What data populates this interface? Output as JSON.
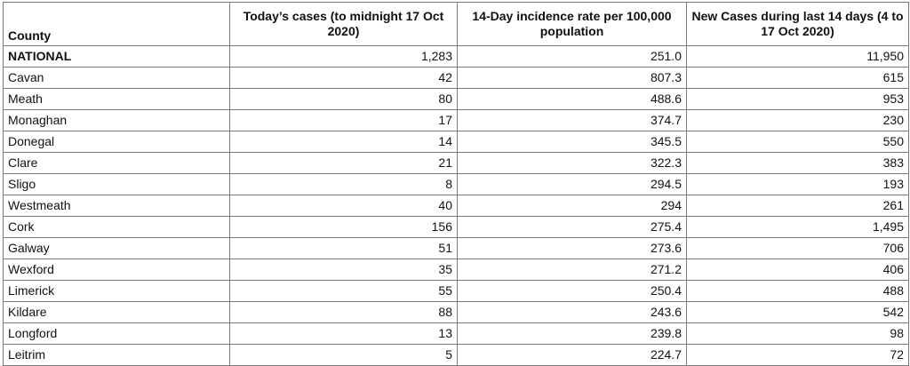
{
  "table": {
    "headers": [
      "County",
      "Today’s cases (to midnight 17 Oct 2020)",
      "14-Day incidence rate per 100,000 population",
      "New Cases during last 14 days (4 to 17 Oct 2020)"
    ],
    "rows": [
      [
        "NATIONAL",
        "1,283",
        "251.0",
        "11,950"
      ],
      [
        "Cavan",
        "42",
        "807.3",
        "615"
      ],
      [
        "Meath",
        "80",
        "488.6",
        "953"
      ],
      [
        "Monaghan",
        "17",
        "374.7",
        "230"
      ],
      [
        "Donegal",
        "14",
        "345.5",
        "550"
      ],
      [
        "Clare",
        "21",
        "322.3",
        "383"
      ],
      [
        "Sligo",
        "8",
        "294.5",
        "193"
      ],
      [
        "Westmeath",
        "40",
        "294",
        "261"
      ],
      [
        "Cork",
        "156",
        "275.4",
        "1,495"
      ],
      [
        "Galway",
        "51",
        "273.6",
        "706"
      ],
      [
        "Wexford",
        "35",
        "271.2",
        "406"
      ],
      [
        "Limerick",
        "55",
        "250.4",
        "488"
      ],
      [
        "Kildare",
        "88",
        "243.6",
        "542"
      ],
      [
        "Longford",
        "13",
        "239.8",
        "98"
      ],
      [
        "Leitrim",
        "5",
        "224.7",
        "72"
      ]
    ]
  }
}
